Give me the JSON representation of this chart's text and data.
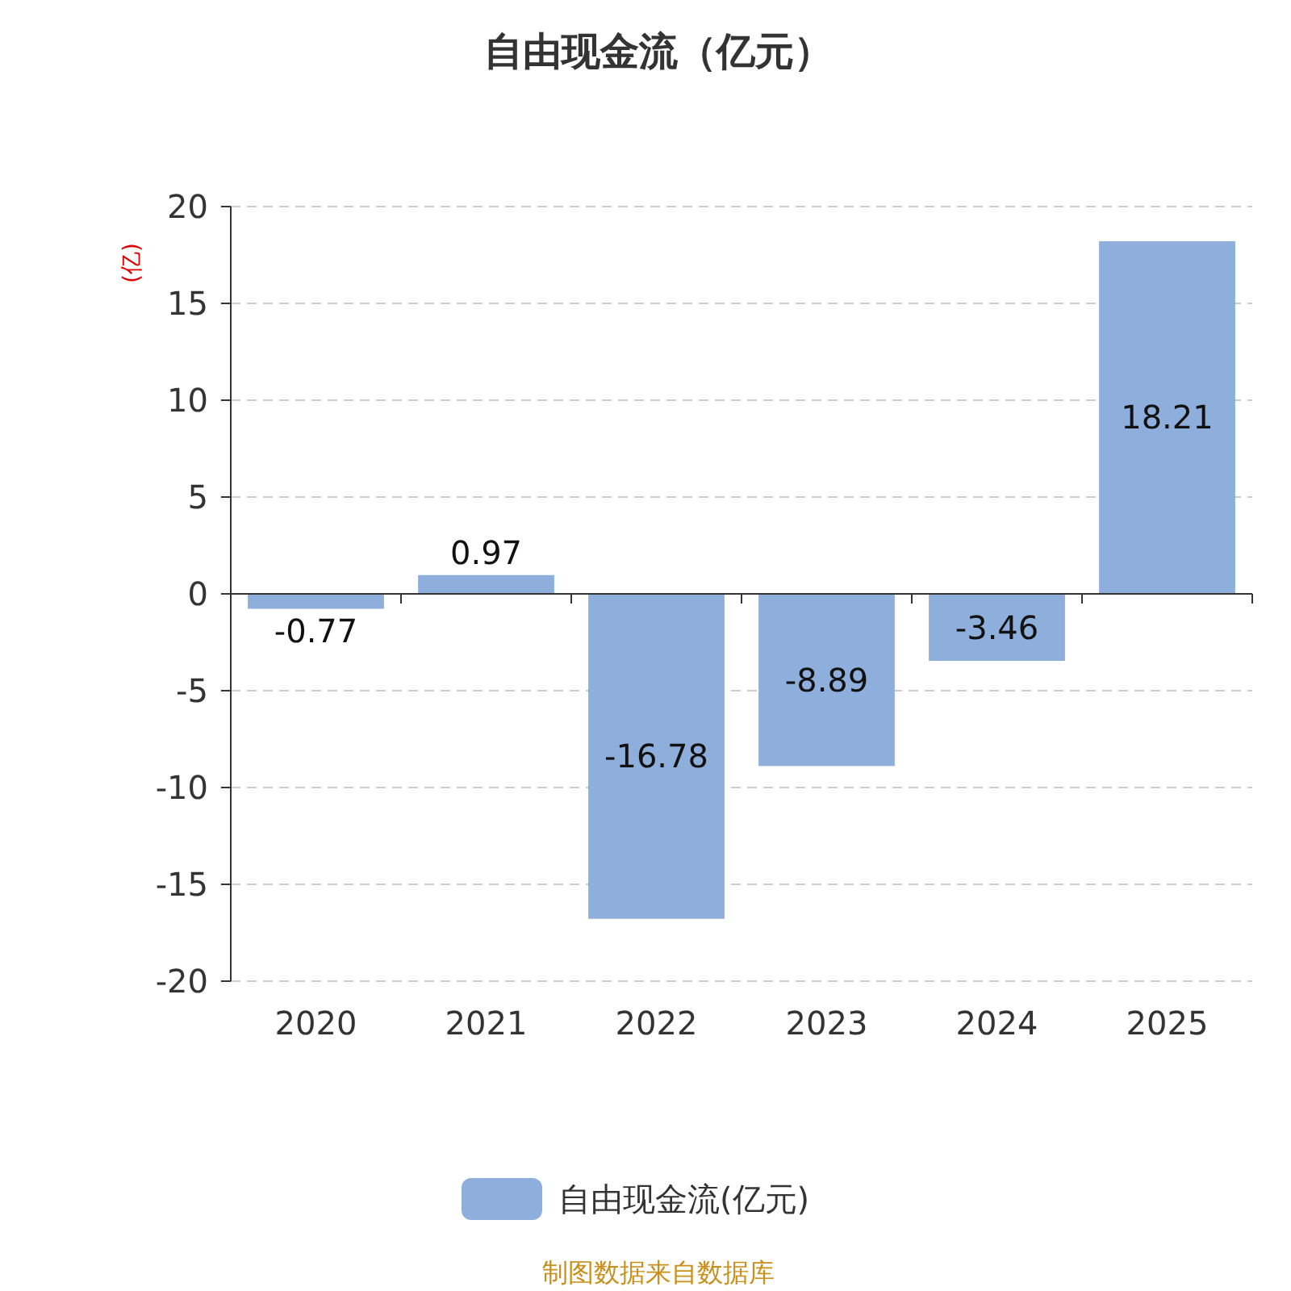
{
  "chart_data": {
    "type": "bar",
    "title": "自由现金流（亿元）",
    "ylabel": "(亿)",
    "categories": [
      "2020",
      "2021",
      "2022",
      "2023",
      "2024",
      "2025"
    ],
    "series": [
      {
        "name": "自由现金流(亿元)",
        "color": "#8eaedb",
        "values": [
          -0.77,
          0.97,
          -16.78,
          -8.89,
          -3.46,
          18.21
        ]
      }
    ],
    "ylim": [
      -20,
      20
    ],
    "yticks": [
      -20,
      -15,
      -10,
      -5,
      0,
      5,
      10,
      15,
      20
    ],
    "grid": "y",
    "legend": "bottom",
    "data_labels": true,
    "annotations": [
      "制图数据来自数据库"
    ]
  }
}
